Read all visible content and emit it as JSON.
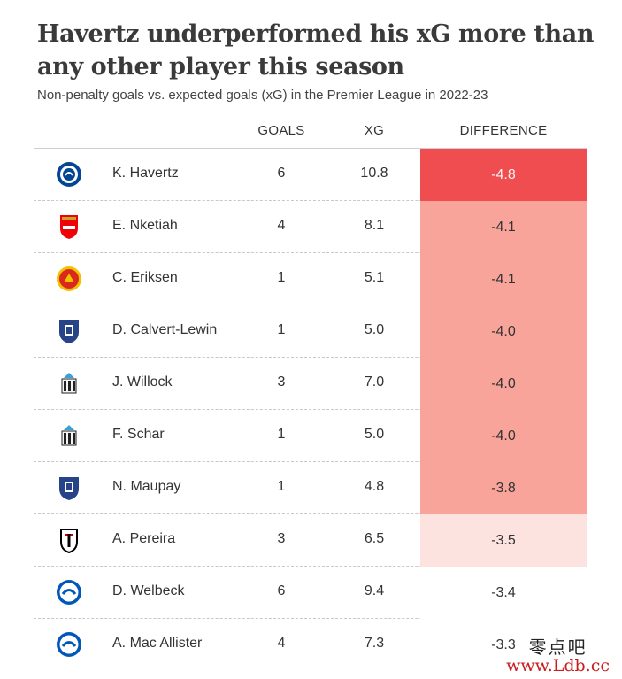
{
  "title": "Havertz underperformed his xG more than any other player this season",
  "subtitle": "Non-penalty goals vs. expected goals (xG) in the Premier League in 2022-23",
  "watermark": {
    "top": "零点吧",
    "bottom": "www.Ldb.cc"
  },
  "chart_data": {
    "type": "table",
    "columns": [
      "GOALS",
      "XG",
      "DIFFERENCE"
    ],
    "rows": [
      {
        "player": "K. Havertz",
        "club_icon": "chelsea-crest",
        "goals": "6",
        "xg": "10.8",
        "difference": "-4.8"
      },
      {
        "player": "E. Nketiah",
        "club_icon": "arsenal-crest",
        "goals": "4",
        "xg": "8.1",
        "difference": "-4.1"
      },
      {
        "player": "C. Eriksen",
        "club_icon": "man-utd-crest",
        "goals": "1",
        "xg": "5.1",
        "difference": "-4.1"
      },
      {
        "player": "D. Calvert-Lewin",
        "club_icon": "everton-crest",
        "goals": "1",
        "xg": "5.0",
        "difference": "-4.0"
      },
      {
        "player": "J. Willock",
        "club_icon": "newcastle-crest",
        "goals": "3",
        "xg": "7.0",
        "difference": "-4.0"
      },
      {
        "player": "F. Schar",
        "club_icon": "newcastle-crest",
        "goals": "1",
        "xg": "5.0",
        "difference": "-4.0"
      },
      {
        "player": "N. Maupay",
        "club_icon": "everton-crest",
        "goals": "1",
        "xg": "4.8",
        "difference": "-3.8"
      },
      {
        "player": "A. Pereira",
        "club_icon": "fulham-crest",
        "goals": "3",
        "xg": "6.5",
        "difference": "-3.5"
      },
      {
        "player": "D. Welbeck",
        "club_icon": "brighton-crest",
        "goals": "6",
        "xg": "9.4",
        "difference": "-3.4"
      },
      {
        "player": "A. Mac Allister",
        "club_icon": "brighton-crest",
        "goals": "4",
        "xg": "7.3",
        "difference": "-3.3"
      }
    ],
    "color_scale": {
      "strong": "#ef4d4f",
      "mid": "#f9a49b",
      "light": "#fde3e0",
      "none": "#ffffff"
    }
  }
}
